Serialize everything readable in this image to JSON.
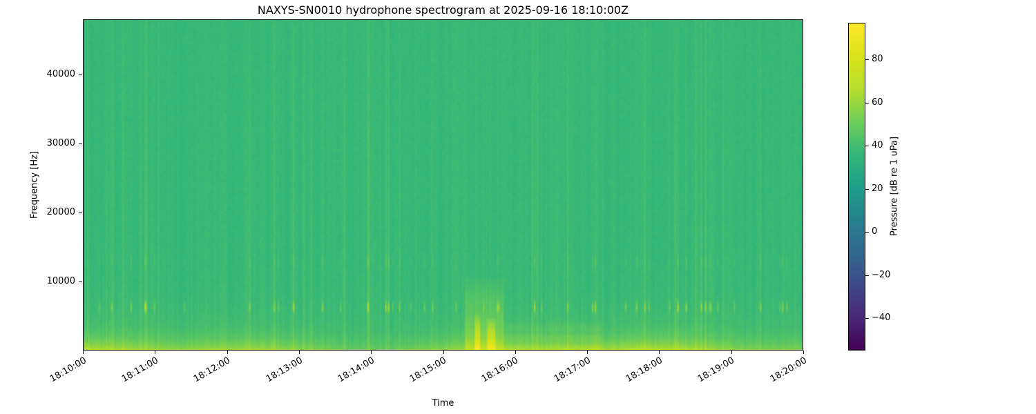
{
  "chart_data": {
    "type": "heatmap",
    "title": "NAXYS-SN0010 hydrophone spectrogram at 2025-09-16 18:10:00Z",
    "xlabel": "Time",
    "ylabel": "Frequency [Hz]",
    "x_range_seconds": [
      0,
      600
    ],
    "x_tick_labels": [
      "18:10:00",
      "18:11:00",
      "18:12:00",
      "18:13:00",
      "18:14:00",
      "18:15:00",
      "18:16:00",
      "18:17:00",
      "18:18:00",
      "18:19:00",
      "18:20:00"
    ],
    "y_range_hz": [
      0,
      48000
    ],
    "y_ticks": [
      {
        "value": 10000,
        "label": "10000"
      },
      {
        "value": 20000,
        "label": "20000"
      },
      {
        "value": 30000,
        "label": "30000"
      },
      {
        "value": 40000,
        "label": "40000"
      }
    ],
    "grid": false,
    "colorbar": {
      "label": "Pressure [dB re 1 uPa]",
      "vmin": -55,
      "vmax": 97,
      "ticks": [
        {
          "value": 80,
          "label": "80"
        },
        {
          "value": 60,
          "label": "60"
        },
        {
          "value": 40,
          "label": "40"
        },
        {
          "value": 20,
          "label": "20"
        },
        {
          "value": 0,
          "label": "0"
        },
        {
          "value": -20,
          "label": "−20"
        },
        {
          "value": -40,
          "label": "−40"
        }
      ],
      "colormap": "viridis",
      "colormap_stops": [
        {
          "p": 0.0,
          "c": "#440154"
        },
        {
          "p": 0.1,
          "c": "#482878"
        },
        {
          "p": 0.2,
          "c": "#3e4989"
        },
        {
          "p": 0.3,
          "c": "#31688e"
        },
        {
          "p": 0.4,
          "c": "#26828e"
        },
        {
          "p": 0.5,
          "c": "#1f9e89"
        },
        {
          "p": 0.6,
          "c": "#35b779"
        },
        {
          "p": 0.7,
          "c": "#6ece58"
        },
        {
          "p": 0.8,
          "c": "#b5de2b"
        },
        {
          "p": 0.9,
          "c": "#dae319"
        },
        {
          "p": 1.0,
          "c": "#fde725"
        }
      ]
    },
    "spectrogram": {
      "description": "Ambient broadband noise near 35-45 dB across 0-48 kHz; brighter low-frequency band below ~3 kHz near 55-65 dB; repeated vertical click transients with energy peaks near 6 kHz (secondary near 13 kHz) throughout the record; loud broadband event around 18:15:30-18:16:00 reaching ~80 dB below 10 kHz, followed by striped low-frequency energy until ~18:17:00.",
      "base_level_db": 37,
      "low_band": {
        "boost_db": 16,
        "decay_hz": 1400,
        "boost2_db": 6,
        "decay2_hz": 3500
      },
      "click_center_hz": 6200,
      "click_secondary_hz": 12800,
      "column_streak_probability": 0.12,
      "noise_seed": 20250916,
      "events": [
        {
          "t0": 0.53,
          "t1": 0.585,
          "fmax": 10500,
          "boost": 13,
          "stripes": false
        },
        {
          "t0": 0.545,
          "t1": 0.552,
          "fmax": 5200,
          "boost": 24,
          "stripes": false
        },
        {
          "t0": 0.562,
          "t1": 0.572,
          "fmax": 4600,
          "boost": 22,
          "stripes": false
        },
        {
          "t0": 0.585,
          "t1": 0.72,
          "fmax": 4500,
          "boost": 5,
          "stripes": true
        }
      ]
    }
  }
}
